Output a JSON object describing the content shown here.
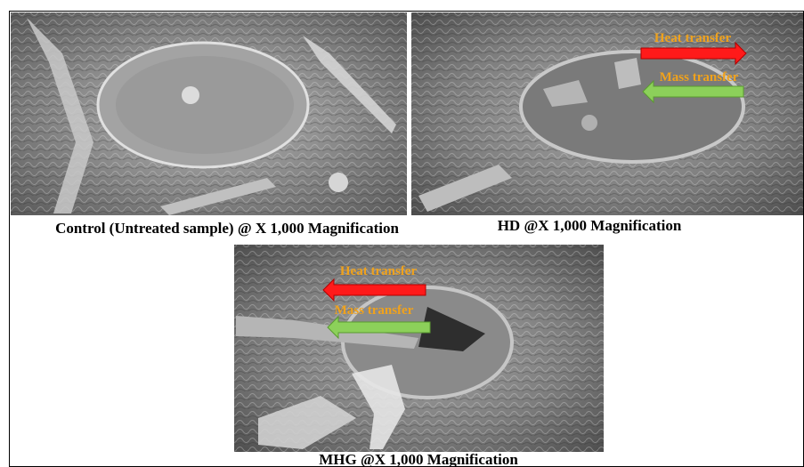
{
  "panels": [
    {
      "caption": "Control (Untreated sample) @ X 1,000 Magnification"
    },
    {
      "caption": "HD @X 1,000 Magnification",
      "annotations": {
        "heat": "Heat transfer",
        "mass": "Mass transfer"
      }
    },
    {
      "caption": "MHG @X 1,000 Magnification",
      "annotations": {
        "heat": "Heat transfer",
        "mass": "Mass transfer"
      }
    }
  ]
}
